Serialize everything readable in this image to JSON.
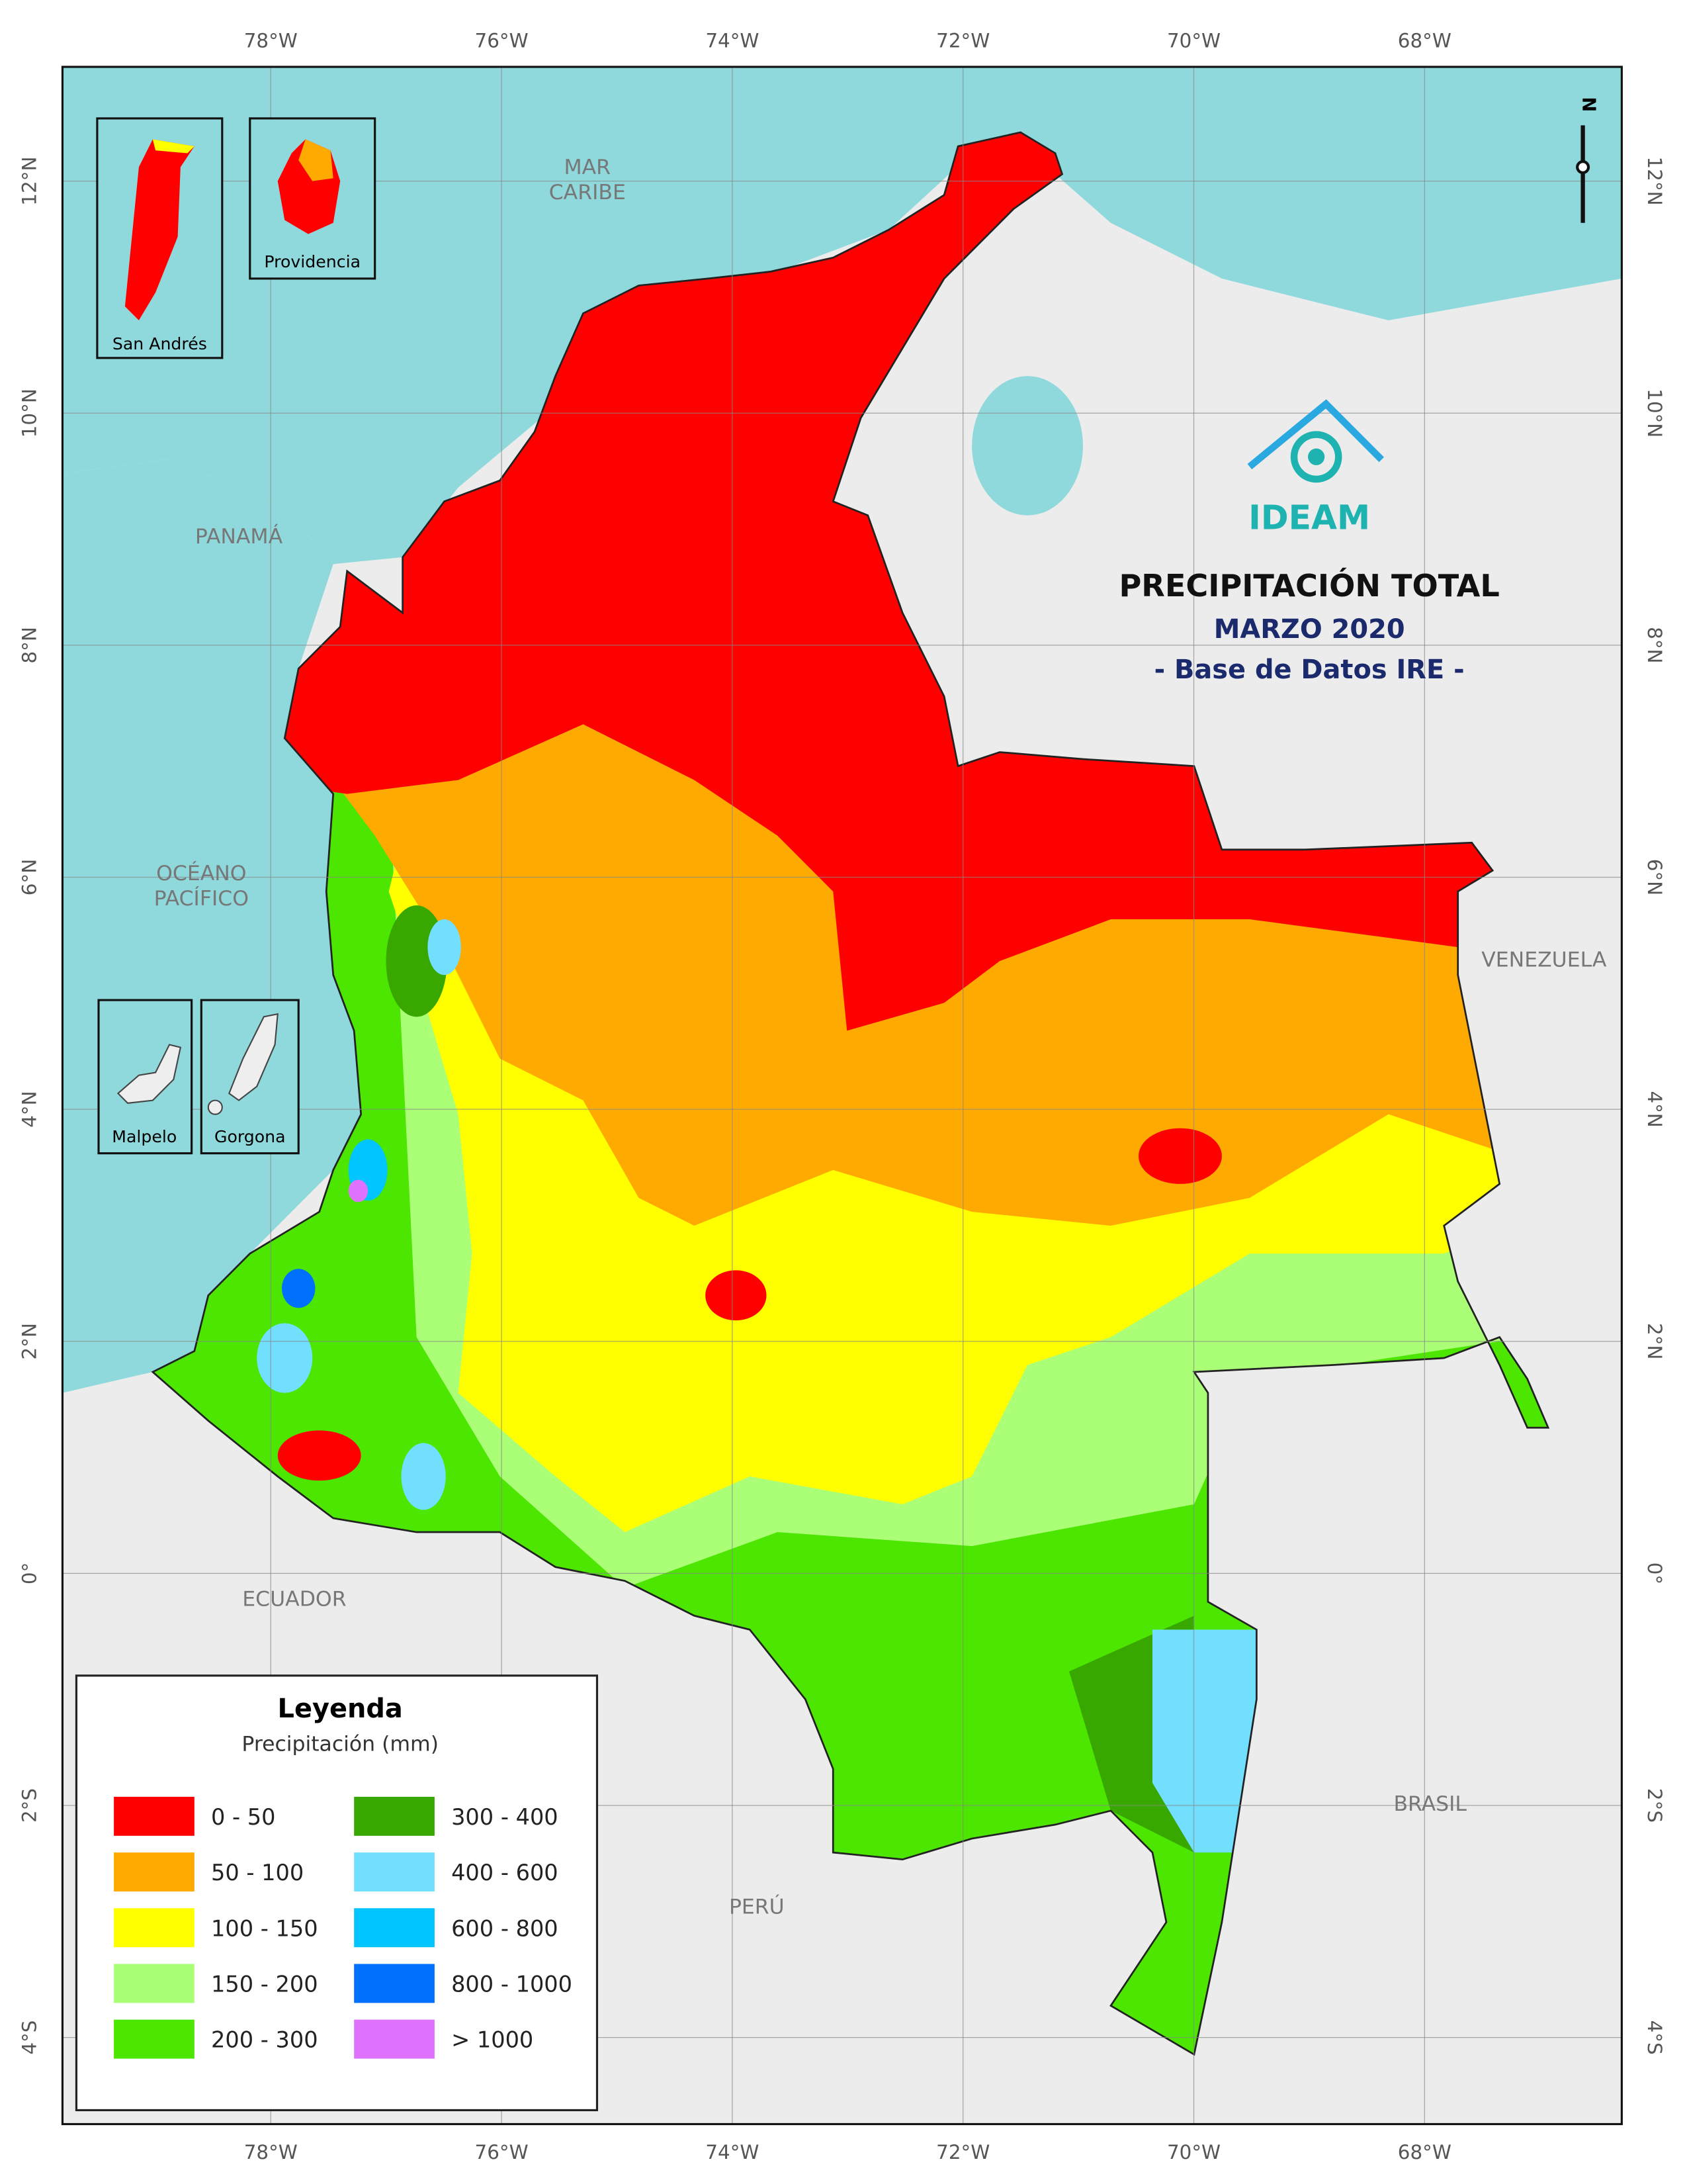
{
  "title": {
    "main": "PRECIPITACIÓN TOTAL",
    "period": "MARZO 2020",
    "source": "- Base de Datos IRE -"
  },
  "logo": "IDEAM",
  "north": "N",
  "grid": {
    "longitudes": [
      "78°W",
      "76°W",
      "74°W",
      "72°W",
      "70°W",
      "68°W"
    ],
    "latitudes": [
      "12°N",
      "10°N",
      "8°N",
      "6°N",
      "4°N",
      "2°N",
      "0°",
      "2°S",
      "4°S"
    ]
  },
  "places": [
    {
      "lines": [
        "MAR",
        "CARIBE"
      ]
    },
    {
      "lines": [
        "PANAMÁ"
      ]
    },
    {
      "lines": [
        "OCÉANO",
        "PACÍFICO"
      ]
    },
    {
      "lines": [
        "VENEZUELA"
      ]
    },
    {
      "lines": [
        "ECUADOR"
      ]
    },
    {
      "lines": [
        "PERÚ"
      ]
    },
    {
      "lines": [
        "BRASIL"
      ]
    }
  ],
  "insets": [
    "San Andrés",
    "Providencia",
    "Malpelo",
    "Gorgona"
  ],
  "legend": {
    "title": "Leyenda",
    "subtitle": "Precipitación (mm)",
    "items": [
      {
        "label": "0 - 50",
        "color": "#ff0000"
      },
      {
        "label": "50 - 100",
        "color": "#ffaa00"
      },
      {
        "label": "100 - 150",
        "color": "#ffff00"
      },
      {
        "label": "150 - 200",
        "color": "#aaff77"
      },
      {
        "label": "200 - 300",
        "color": "#4ce600"
      },
      {
        "label": "300 - 400",
        "color": "#38a800"
      },
      {
        "label": "400 - 600",
        "color": "#73dfff"
      },
      {
        "label": "600 - 800",
        "color": "#00c5ff"
      },
      {
        "label": "800 - 1000",
        "color": "#0070ff"
      },
      {
        "label": "> 1000",
        "color": "#df73ff"
      }
    ]
  }
}
